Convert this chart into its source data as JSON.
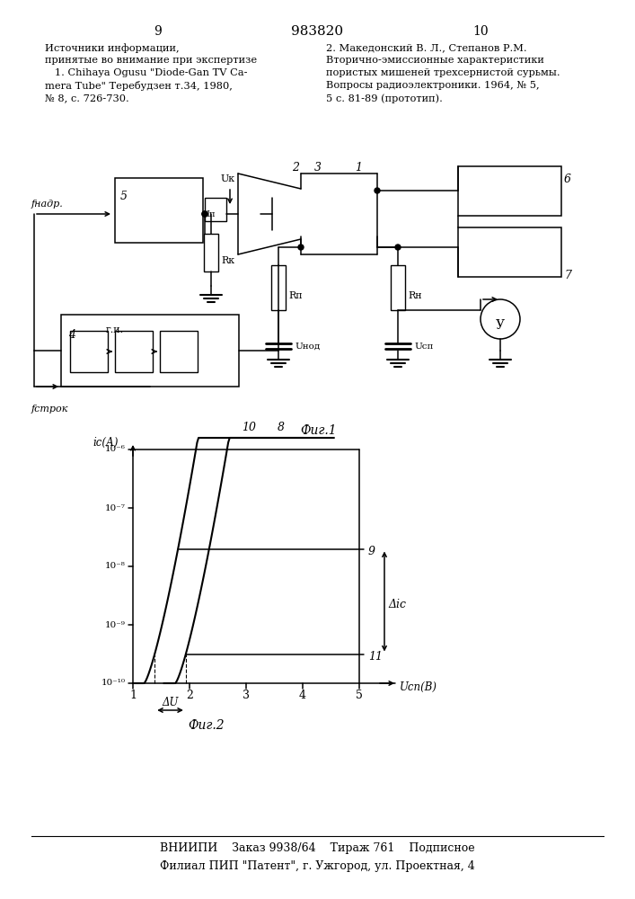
{
  "page_number_left": "9",
  "page_center": "983820",
  "page_number_right": "10",
  "text_left_col": [
    "Источники информации,",
    "принятые во внимание при экспертизе",
    "   1. Chihaya Ogusu \"Diode-Gan TV Ca-",
    "mera Tube\" Теребудзен т.34, 1980,",
    "№ 8, с. 726-730."
  ],
  "text_right_col": [
    "2. Македонский В. Л., Степанов Р.М.",
    "Вторично-эмиссионные характеристики",
    "пористых мишеней трехсернистой сурьмы.",
    "Вопросы радиоэлектроники. 1964, № 5,",
    "5 с. 81-89 (прототип)."
  ],
  "fig1_caption": "Фиг.1",
  "fig2_caption": "Фиг.2",
  "footer_line1": "ВНИИПИ    Заказ 9938/64    Тираж 761    Подписное",
  "footer_line2": "Филиал ПИП \"Патент\", г. Ужгород, ул. Проектная, 4",
  "bg_color": "#ffffff",
  "text_color": "#000000"
}
